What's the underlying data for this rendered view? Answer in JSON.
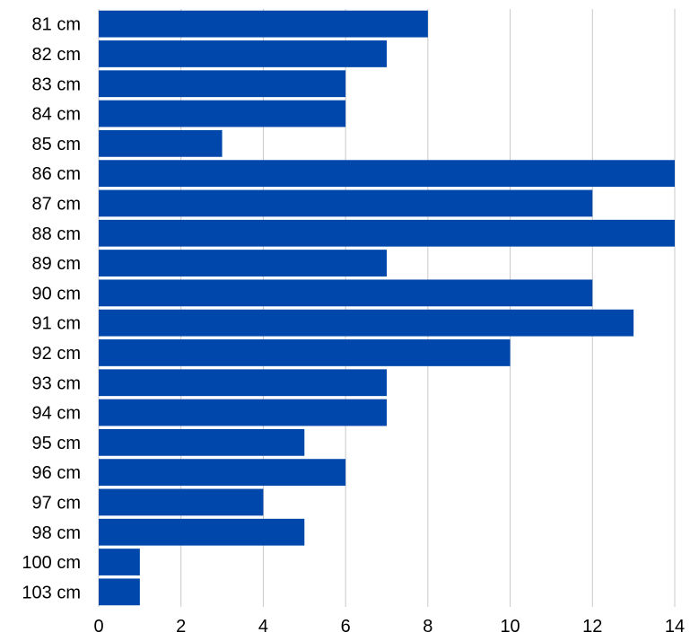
{
  "chart_data": {
    "type": "bar",
    "orientation": "horizontal",
    "categories": [
      "81 cm",
      "82 cm",
      "83 cm",
      "84 cm",
      "85 cm",
      "86 cm",
      "87 cm",
      "88 cm",
      "89 cm",
      "90 cm",
      "91 cm",
      "92 cm",
      "93 cm",
      "94 cm",
      "95 cm",
      "96 cm",
      "97 cm",
      "98 cm",
      "100 cm",
      "103 cm"
    ],
    "values": [
      8,
      7,
      6,
      6,
      3,
      14,
      12,
      14,
      7,
      12,
      13,
      10,
      7,
      7,
      5,
      6,
      4,
      5,
      1,
      1
    ],
    "title": "",
    "xlabel": "",
    "ylabel": "",
    "xlim": [
      0,
      14
    ],
    "x_ticks": [
      0,
      2,
      4,
      6,
      8,
      10,
      12,
      14
    ],
    "grid": "vertical",
    "legend": "none",
    "colors": {
      "bar": "#0047ab",
      "grid": "#c8c8c8",
      "text": "#000000"
    }
  }
}
